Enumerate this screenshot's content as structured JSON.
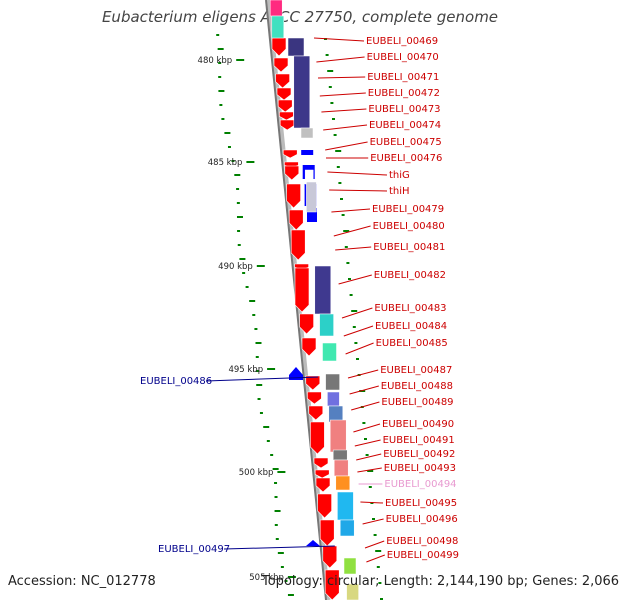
{
  "title": "Eubacterium eligens ATCC 27750, complete genome",
  "footer": {
    "accession": "Accession: NC_012778",
    "summary": "Topology: circular; Length: 2,144,190 bp; Genes: 2,066"
  },
  "ticks": [
    "480 kbp",
    "485 kbp",
    "490 kbp",
    "495 kbp",
    "500 kbp",
    "505 kbp"
  ],
  "right_labels": [
    {
      "text": "EUBELI_00469",
      "color": "#cc0000"
    },
    {
      "text": "EUBELI_00470",
      "color": "#cc0000"
    },
    {
      "text": "EUBELI_00471",
      "color": "#cc0000"
    },
    {
      "text": "EUBELI_00472",
      "color": "#cc0000"
    },
    {
      "text": "EUBELI_00473",
      "color": "#cc0000"
    },
    {
      "text": "EUBELI_00474",
      "color": "#cc0000"
    },
    {
      "text": "EUBELI_00475",
      "color": "#cc0000"
    },
    {
      "text": "EUBELI_00476",
      "color": "#cc0000"
    },
    {
      "text": "thiG",
      "color": "#cc0000"
    },
    {
      "text": "thiH",
      "color": "#cc0000"
    },
    {
      "text": "EUBELI_00479",
      "color": "#cc0000"
    },
    {
      "text": "EUBELI_00480",
      "color": "#cc0000"
    },
    {
      "text": "EUBELI_00481",
      "color": "#cc0000"
    },
    {
      "text": "EUBELI_00482",
      "color": "#cc0000"
    },
    {
      "text": "EUBELI_00483",
      "color": "#cc0000"
    },
    {
      "text": "EUBELI_00484",
      "color": "#cc0000"
    },
    {
      "text": "EUBELI_00485",
      "color": "#cc0000"
    },
    {
      "text": "EUBELI_00487",
      "color": "#cc0000"
    },
    {
      "text": "EUBELI_00488",
      "color": "#cc0000"
    },
    {
      "text": "EUBELI_00489",
      "color": "#cc0000"
    },
    {
      "text": "EUBELI_00490",
      "color": "#cc0000"
    },
    {
      "text": "EUBELI_00491",
      "color": "#cc0000"
    },
    {
      "text": "EUBELI_00492",
      "color": "#cc0000"
    },
    {
      "text": "EUBELI_00493",
      "color": "#cc0000"
    },
    {
      "text": "EUBELI_00494",
      "color": "#e89ad0"
    },
    {
      "text": "EUBELI_00495",
      "color": "#cc0000"
    },
    {
      "text": "EUBELI_00496",
      "color": "#cc0000"
    },
    {
      "text": "EUBELI_00498",
      "color": "#cc0000"
    },
    {
      "text": "EUBELI_00499",
      "color": "#cc0000"
    }
  ],
  "left_labels": [
    {
      "text": "EUBELI_00486",
      "color": "#00008b"
    },
    {
      "text": "EUBELI_00497",
      "color": "#00008b"
    }
  ],
  "colors": {
    "forward_cds": "#ff0000",
    "reverse_cds": "#0000ff",
    "backbone": "#999999",
    "gc_skew": "#008000"
  }
}
